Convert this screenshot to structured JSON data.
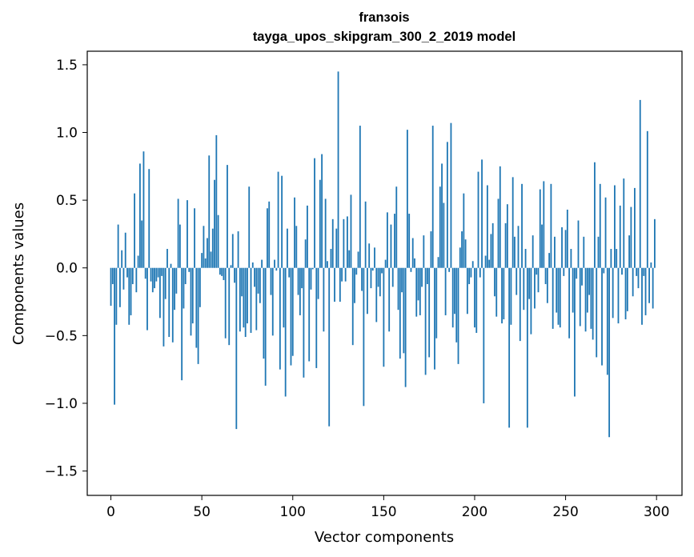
{
  "chart_data": {
    "type": "bar",
    "title_line1": "franзois",
    "title_line2": "tayga_upos_skipgram_300_2_2019 model",
    "xlabel": "Vector components",
    "ylabel": "Components values",
    "xlim": [
      -13,
      314
    ],
    "ylim": [
      -1.68,
      1.6
    ],
    "xticks": [
      0,
      50,
      100,
      150,
      200,
      250,
      300
    ],
    "xtick_labels": [
      "0",
      "50",
      "100",
      "150",
      "200",
      "250",
      "300"
    ],
    "yticks": [
      -1.5,
      -1.0,
      -0.5,
      0.0,
      0.5,
      1.0,
      1.5
    ],
    "ytick_labels": [
      "−1.5",
      "−1.0",
      "−0.5",
      "0.0",
      "0.5",
      "1.0",
      "1.5"
    ],
    "grid": false,
    "bar_color": "#1f77b4",
    "values": [
      -0.28,
      -0.12,
      -1.01,
      -0.42,
      0.32,
      -0.29,
      0.13,
      -0.16,
      0.26,
      -0.07,
      -0.42,
      -0.35,
      -0.12,
      0.55,
      -0.18,
      0.09,
      0.77,
      0.35,
      0.86,
      -0.08,
      -0.46,
      0.73,
      -0.1,
      -0.18,
      -0.15,
      -0.1,
      -0.07,
      -0.37,
      -0.06,
      -0.58,
      -0.23,
      0.14,
      -0.51,
      0.03,
      -0.55,
      -0.31,
      -0.19,
      0.51,
      0.32,
      -0.83,
      -0.3,
      -0.12,
      0.5,
      -0.03,
      -0.5,
      -0.41,
      0.44,
      -0.59,
      -0.71,
      -0.29,
      0.11,
      0.31,
      0.07,
      0.22,
      0.83,
      0.12,
      0.29,
      0.65,
      0.98,
      0.39,
      -0.05,
      -0.06,
      -0.09,
      -0.52,
      0.76,
      -0.57,
      0.02,
      0.25,
      -0.11,
      -1.19,
      0.27,
      -0.47,
      -0.21,
      -0.44,
      -0.51,
      -0.41,
      0.6,
      -0.48,
      0.04,
      -0.14,
      -0.46,
      -0.19,
      -0.26,
      0.06,
      -0.67,
      -0.87,
      0.44,
      0.49,
      -0.2,
      -0.5,
      0.06,
      -0.02,
      0.71,
      -0.75,
      0.68,
      -0.44,
      -0.95,
      0.29,
      -0.07,
      -0.72,
      -0.65,
      0.52,
      0.31,
      -0.2,
      -0.35,
      -0.15,
      -0.81,
      0.21,
      0.46,
      -0.69,
      -0.16,
      -0.01,
      0.81,
      -0.74,
      -0.23,
      0.65,
      0.84,
      -0.47,
      0.51,
      0.05,
      -1.17,
      0.14,
      0.36,
      -0.25,
      0.29,
      1.45,
      -0.25,
      -0.1,
      0.36,
      -0.1,
      0.38,
      0.13,
      0.54,
      -0.57,
      -0.26,
      -0.05,
      0.12,
      1.05,
      -0.17,
      -1.02,
      0.49,
      -0.34,
      0.18,
      -0.15,
      -0.02,
      0.15,
      -0.4,
      -0.14,
      -0.21,
      -0.04,
      -0.73,
      0.06,
      0.41,
      -0.47,
      0.32,
      -0.14,
      0.4,
      0.6,
      -0.31,
      -0.67,
      -0.18,
      -0.63,
      -0.88,
      1.02,
      0.4,
      -0.03,
      0.22,
      0.07,
      -0.36,
      -0.24,
      -0.35,
      -0.14,
      0.24,
      -0.79,
      -0.12,
      -0.66,
      0.27,
      1.05,
      -0.75,
      -0.52,
      0.08,
      0.6,
      0.77,
      0.48,
      -0.35,
      0.93,
      -0.03,
      1.07,
      -0.44,
      -0.34,
      -0.55,
      -0.71,
      0.15,
      0.27,
      0.55,
      0.21,
      -0.34,
      -0.12,
      -0.07,
      0.05,
      -0.44,
      -0.48,
      0.71,
      -0.07,
      0.8,
      -1.0,
      0.09,
      0.61,
      0.06,
      0.25,
      0.33,
      -0.21,
      -0.36,
      0.51,
      0.75,
      -0.41,
      -0.38,
      0.33,
      0.47,
      -1.18,
      -0.42,
      0.67,
      0.23,
      -0.2,
      0.31,
      -0.54,
      0.62,
      -0.31,
      0.14,
      -1.18,
      -0.23,
      -0.49,
      0.24,
      -0.3,
      -0.05,
      -0.18,
      0.58,
      0.32,
      0.64,
      -0.12,
      -0.26,
      0.11,
      0.62,
      -0.45,
      0.23,
      -0.33,
      -0.42,
      -0.44,
      0.3,
      -0.06,
      0.28,
      0.43,
      -0.52,
      0.14,
      -0.33,
      -0.95,
      -0.08,
      0.35,
      -0.43,
      -0.13,
      0.23,
      -0.47,
      -0.33,
      -0.2,
      -0.45,
      -0.53,
      0.78,
      -0.66,
      0.23,
      0.62,
      -0.72,
      -0.04,
      0.52,
      -0.79,
      -1.25,
      0.14,
      -0.37,
      0.61,
      0.14,
      -0.41,
      0.46,
      -0.05,
      0.66,
      -0.38,
      -0.32,
      0.24,
      0.45,
      -0.21,
      0.59,
      -0.06,
      -0.15,
      1.24,
      -0.42,
      -0.06,
      -0.35,
      1.01,
      -0.26,
      0.04,
      -0.3,
      0.36
    ]
  }
}
